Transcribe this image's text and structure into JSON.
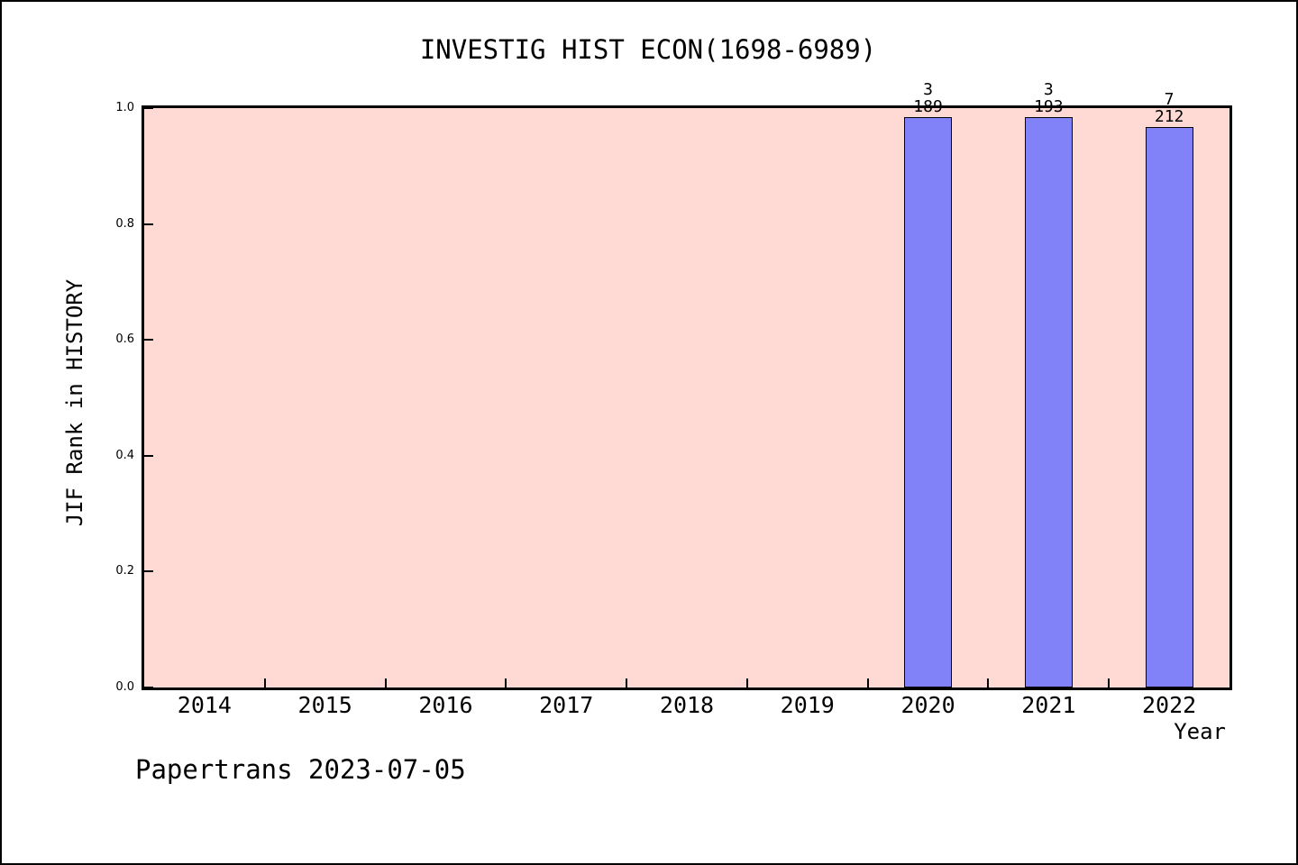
{
  "figure": {
    "footer": "Papertrans 2023-07-05"
  },
  "chart_data": {
    "type": "bar",
    "title": "INVESTIG HIST ECON(1698-6989)",
    "xlabel": "Year",
    "ylabel": "JIF Rank in HISTORY",
    "categories": [
      "2014",
      "2015",
      "2016",
      "2017",
      "2018",
      "2019",
      "2020",
      "2021",
      "2022"
    ],
    "ylim": [
      0.0,
      1.0
    ],
    "yticks": [
      "0.0",
      "0.2",
      "0.4",
      "0.6",
      "0.8",
      "1.0"
    ],
    "grid": false,
    "legend": null,
    "bars": [
      {
        "year": "2020",
        "rank": 3,
        "total": 189,
        "value": 0.9841
      },
      {
        "year": "2021",
        "rank": 3,
        "total": 193,
        "value": 0.9845
      },
      {
        "year": "2022",
        "rank": 7,
        "total": 212,
        "value": 0.967
      }
    ],
    "colors": {
      "bar_fill": "#8282f8",
      "bar_edge": "#000000",
      "plot_bg": "#ffd9d4",
      "figure_bg": "#ffffff",
      "frame": "#000000"
    }
  }
}
